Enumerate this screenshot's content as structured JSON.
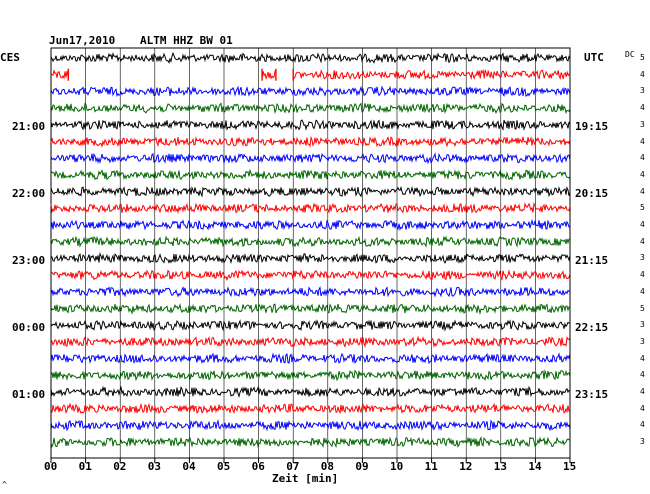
{
  "header": {
    "date": "Jun17,2010",
    "station": "ALTM HHZ BW 01",
    "left_zone": "CES",
    "right_zone": "UTC",
    "dc_label": "DC"
  },
  "left_time_labels": [
    "21:00",
    "22:00",
    "23:00",
    "00:00",
    "01:00"
  ],
  "right_time_labels": [
    "19:15",
    "20:15",
    "21:15",
    "22:15",
    "23:15"
  ],
  "x_ticks": [
    "00",
    "01",
    "02",
    "03",
    "04",
    "05",
    "06",
    "07",
    "08",
    "09",
    "10",
    "11",
    "12",
    "13",
    "14",
    "15"
  ],
  "x_axis_label": "Zeit [min]",
  "corner_mark": "^",
  "dc_values": [
    "5",
    "4",
    "3",
    "4",
    "3",
    "4",
    "4",
    "4",
    "4",
    "5",
    "4",
    "4",
    "3",
    "4",
    "4",
    "5",
    "3",
    "3",
    "4",
    "4",
    "4",
    "4",
    "4",
    "3"
  ],
  "trace_colors": [
    "#000000",
    "#ff0000",
    "#0000ff",
    "#006400"
  ],
  "chart_data": {
    "type": "line",
    "title": "",
    "xlabel": "Zeit [min]",
    "ylabel": "",
    "xlim": [
      0,
      15
    ],
    "rows": 24,
    "row_interval_minutes": 15,
    "gaps": [
      {
        "row": 1,
        "x": [
          0.5,
          6.1
        ]
      },
      {
        "row": 1,
        "x": [
          6.5,
          7.0
        ]
      }
    ]
  }
}
